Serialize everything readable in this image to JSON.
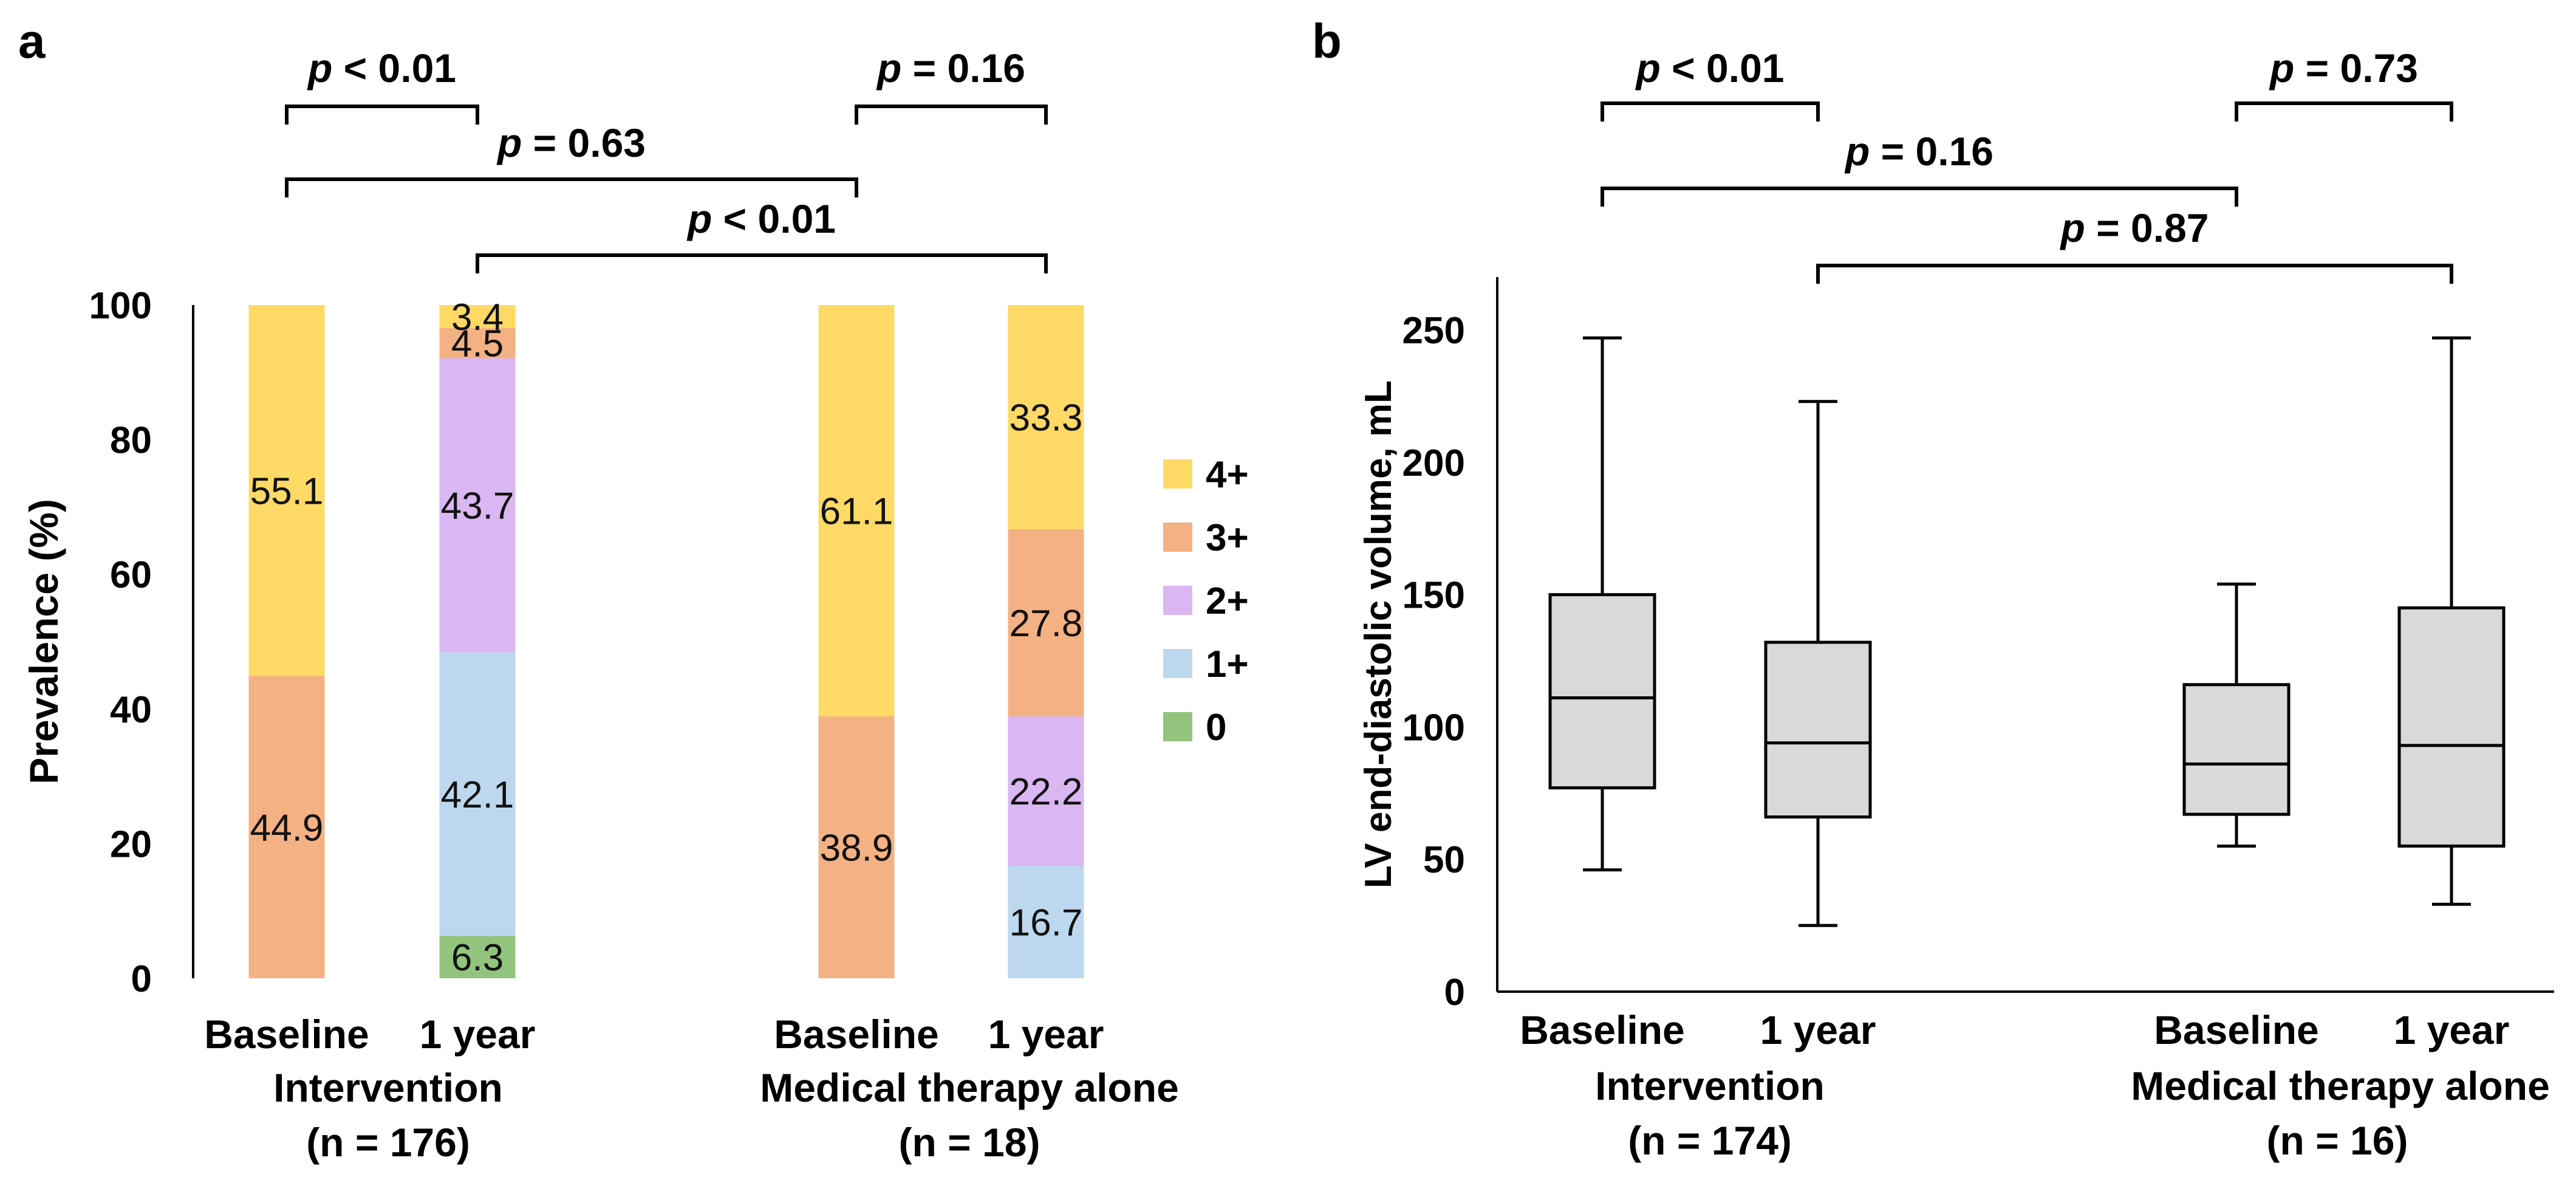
{
  "chart_data": [
    {
      "panel": "a",
      "type": "bar",
      "stacked": true,
      "ylabel": "Prevalence (%)",
      "ylim": [
        0,
        100
      ],
      "yticks": [
        0,
        20,
        40,
        60,
        80,
        100
      ],
      "categories": [
        "Baseline",
        "1 year",
        "Baseline",
        "1 year"
      ],
      "groups": [
        {
          "label": "Intervention",
          "n_label": "(n = 176)"
        },
        {
          "label": "Medical therapy alone",
          "n_label": "(n = 18)"
        }
      ],
      "series": [
        {
          "name": "0",
          "color": "#93c47d",
          "values": [
            0,
            6.3,
            0,
            0
          ],
          "labels": [
            "",
            "6.3",
            "",
            ""
          ]
        },
        {
          "name": "1+",
          "color": "#bdd7ee",
          "values": [
            0,
            42.1,
            0,
            16.7
          ],
          "labels": [
            "",
            "42.1",
            "",
            "16.7"
          ]
        },
        {
          "name": "2+",
          "color": "#dab6f2",
          "values": [
            0,
            43.7,
            0,
            22.2
          ],
          "labels": [
            "",
            "43.7",
            "",
            "22.2"
          ]
        },
        {
          "name": "3+",
          "color": "#f4b183",
          "values": [
            44.9,
            4.5,
            38.9,
            27.8
          ],
          "labels": [
            "44.9",
            "4.5",
            "38.9",
            "27.8"
          ]
        },
        {
          "name": "4+",
          "color": "#ffd966",
          "values": [
            55.1,
            3.4,
            61.1,
            33.3
          ],
          "labels": [
            "55.1",
            "3.4",
            "61.1",
            "33.3"
          ]
        }
      ],
      "legend": [
        "4+",
        "3+",
        "2+",
        "1+",
        "0"
      ],
      "brackets": [
        {
          "from": 0,
          "to": 1,
          "p": "0.01",
          "rel": "<",
          "level": 0
        },
        {
          "from": 2,
          "to": 3,
          "p": "0.16",
          "rel": "=",
          "level": 0
        },
        {
          "from": 0,
          "to": 2,
          "p": "0.63",
          "rel": "=",
          "level": 1
        },
        {
          "from": 1,
          "to": 3,
          "p": "0.01",
          "rel": "<",
          "level": 2
        }
      ]
    },
    {
      "panel": "b",
      "type": "box",
      "ylabel": "LV end-diastolic volume, mL",
      "ylim": [
        0,
        270
      ],
      "yticks": [
        0,
        50,
        100,
        150,
        200,
        250
      ],
      "categories": [
        "Baseline",
        "1 year",
        "Baseline",
        "1 year"
      ],
      "groups": [
        {
          "label": "Intervention",
          "n_label": "(n = 174)"
        },
        {
          "label": "Medical therapy alone",
          "n_label": "(n = 16)"
        }
      ],
      "boxes": [
        {
          "min": 46,
          "q1": 77,
          "median": 111,
          "q3": 150,
          "max": 247
        },
        {
          "min": 25,
          "q1": 66,
          "median": 94,
          "q3": 132,
          "max": 223
        },
        {
          "min": 55,
          "q1": 67,
          "median": 86,
          "q3": 116,
          "max": 154
        },
        {
          "min": 33,
          "q1": 55,
          "median": 93,
          "q3": 145,
          "max": 247
        }
      ],
      "brackets": [
        {
          "from": 0,
          "to": 1,
          "p": "0.01",
          "rel": "<",
          "level": 0
        },
        {
          "from": 2,
          "to": 3,
          "p": "0.73",
          "rel": "=",
          "level": 0
        },
        {
          "from": 0,
          "to": 2,
          "p": "0.16",
          "rel": "=",
          "level": 1
        },
        {
          "from": 1,
          "to": 3,
          "p": "0.87",
          "rel": "=",
          "level": 2
        }
      ]
    }
  ]
}
